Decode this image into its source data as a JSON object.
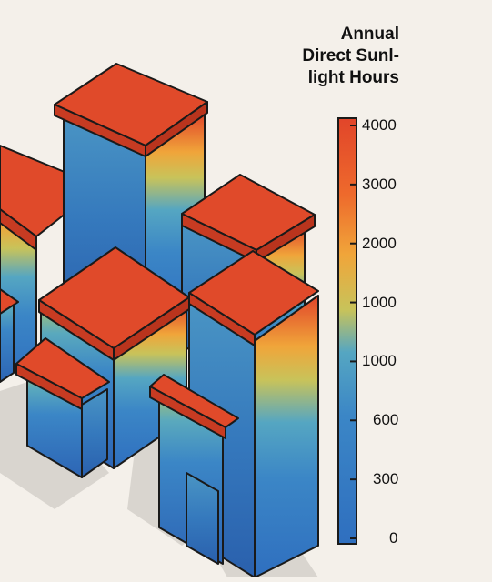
{
  "legend": {
    "title_lines": [
      "Annual",
      "Direct Sunl-",
      "light Hours"
    ],
    "ticks": [
      {
        "label": "4000"
      },
      {
        "label": "3000"
      },
      {
        "label": "2000"
      },
      {
        "label": "1000"
      },
      {
        "label": "1000"
      },
      {
        "label": "600"
      },
      {
        "label": "300"
      },
      {
        "label": "0"
      }
    ],
    "colors": [
      "#2f6fbf",
      "#3b86c6",
      "#55a6c2",
      "#c8c35a",
      "#f0a53a",
      "#ee6a2c",
      "#e1452a"
    ]
  },
  "scene": {
    "subject": "isometric buildings colored by sunlight exposure",
    "roof_color": "#e04a2a",
    "shadow_color": "#d9d5cf",
    "outline_color": "#1a1a1a"
  }
}
